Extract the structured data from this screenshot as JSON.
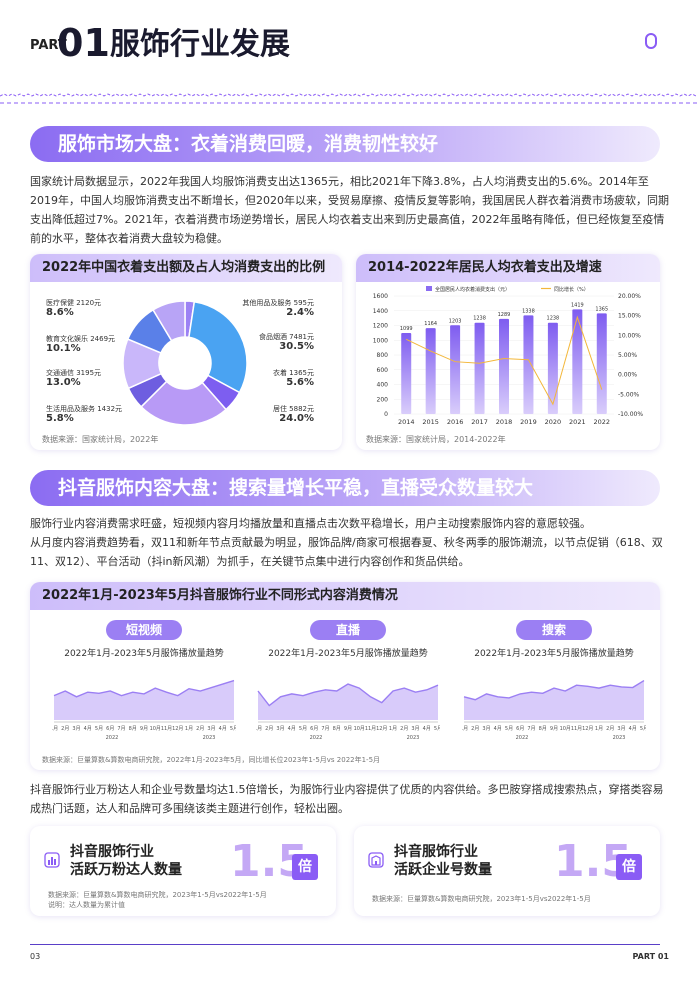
{
  "header": {
    "part": "PART",
    "num": "01",
    "title": "服饰行业发展"
  },
  "s1": {
    "banner": "服饰市场大盘：衣着消费回暖，消费韧性较好",
    "para": "国家统计局数据显示，2022年我国人均服饰消费支出达1365元，相比2021年下降3.8%，占人均消费支出的5.6%。2014年至2019年，中国人均服饰消费支出不断增长，但2020年以来，受贸易摩擦、疫情反复等影响，我国居民人群衣着消费市场疲软，同期支出降低超过7%。2021年，衣着消费市场逆势增长，居民人均衣着支出来到历史最高值，2022年虽略有降低，但已经恢复至疫情前的水平，整体衣着消费大盘较为稳健。"
  },
  "pie_card": {
    "title": "2022年中国衣着支出额及占人均消费支出的比例",
    "source": "数据来源：国家统计局，2022年",
    "items": [
      {
        "name": "医疗保健 2120元",
        "pct": "8.6%",
        "v": 8.6,
        "color": "#b8a4f6"
      },
      {
        "name": "教育文化娱乐 2469元",
        "pct": "10.1%",
        "v": 10.1,
        "color": "#5a80e8"
      },
      {
        "name": "交通通信 3195元",
        "pct": "13.0%",
        "v": 13.0,
        "color": "#c9b7fa"
      },
      {
        "name": "生活用品及服务 1432元",
        "pct": "5.8%",
        "v": 5.8,
        "color": "#6e5ee0"
      },
      {
        "name": "居住 5882元",
        "pct": "24.0%",
        "v": 24.0,
        "color": "#b89af6"
      },
      {
        "name": "衣着 1365元",
        "pct": "5.6%",
        "v": 5.6,
        "color": "#7d5ef0"
      },
      {
        "name": "食品烟酒 7481元",
        "pct": "30.5%",
        "v": 30.5,
        "color": "#4aa3f2"
      },
      {
        "name": "其他用品及服务 595元",
        "pct": "2.4%",
        "v": 2.4,
        "color": "#9c82f4"
      }
    ]
  },
  "chart_data": {
    "type": "bar",
    "title": "2014-2022年居民人均衣着支出及增速",
    "categories": [
      "2014",
      "2015",
      "2016",
      "2017",
      "2018",
      "2019",
      "2020",
      "2021",
      "2022"
    ],
    "series": [
      {
        "name": "全国居民人均衣着消费支出（元）",
        "values": [
          1099,
          1164,
          1203,
          1238,
          1289,
          1338,
          1238,
          1419,
          1365
        ]
      },
      {
        "name": "同比增长（%）",
        "values": [
          9.0,
          6.0,
          3.3,
          2.9,
          4.1,
          3.8,
          -7.5,
          14.6,
          -3.8
        ]
      }
    ],
    "ylim": [
      0,
      1600
    ],
    "y2lim": [
      -10,
      20
    ],
    "yticks": [
      "1600",
      "1400",
      "1200",
      "1000",
      "800",
      "600",
      "400",
      "200",
      "0"
    ],
    "y2ticks": [
      "20.00%",
      "15.00%",
      "10.00%",
      "5.00%",
      "0.00%",
      "-5.00%",
      "-10.00%"
    ],
    "source": "数据来源：国家统计局，2014-2022年"
  },
  "s2": {
    "banner": "抖音服饰内容大盘：搜索量增长平稳，直播受众数量较大",
    "para1": "服饰行业内容消费需求旺盛，短视频内容月均播放量和直播点击次数平稳增长，用户主动搜索服饰内容的意愿较强。",
    "para2": "从月度内容消费趋势看，双11和新年节点贡献最为明显，服饰品牌/商家可根据春夏、秋冬两季的服饰潮流，以节点促销（618、双11、双12）、平台活动（抖in新风潮）为抓手，在关键节点集中进行内容创作和货品供给。"
  },
  "trend_card": {
    "title": "2022年1月-2023年5月抖音服饰行业不同形式内容消费情况",
    "panels": [
      {
        "pill": "短视频",
        "sub": "2022年1月-2023年5月服饰播放量趋势",
        "vals": [
          0.42,
          0.5,
          0.4,
          0.48,
          0.46,
          0.5,
          0.42,
          0.48,
          0.45,
          0.55,
          0.48,
          0.42,
          0.54,
          0.5,
          0.56,
          0.62,
          0.68
        ]
      },
      {
        "pill": "直播",
        "sub": "2022年1月-2023年5月服饰播放量趋势",
        "vals": [
          0.5,
          0.25,
          0.4,
          0.45,
          0.42,
          0.48,
          0.52,
          0.5,
          0.62,
          0.55,
          0.4,
          0.3,
          0.5,
          0.55,
          0.48,
          0.52,
          0.6
        ]
      },
      {
        "pill": "搜索",
        "sub": "2022年1月-2023年5月服饰播放量趋势",
        "vals": [
          0.4,
          0.35,
          0.45,
          0.4,
          0.38,
          0.45,
          0.48,
          0.46,
          0.55,
          0.5,
          0.6,
          0.58,
          0.55,
          0.6,
          0.57,
          0.56,
          0.68
        ]
      }
    ],
    "months": [
      "1月",
      "2月",
      "3月",
      "4月",
      "5月",
      "6月",
      "7月",
      "8月",
      "9月",
      "10月",
      "11月",
      "12月",
      "1月",
      "2月",
      "3月",
      "4月",
      "5月"
    ],
    "year1": "2022",
    "year2": "2023",
    "source": "数据来源：巨量算数&算数电商研究院，2022年1月-2023年5月，同比增长位2023年1-5月vs 2022年1-5月"
  },
  "s3": {
    "para": "抖音服饰行业万粉达人和企业号数量均达1.5倍增长，为服饰行业内容提供了优质的内容供给。多巴胺穿搭成搜索热点，穿搭类容易成热门话题，达人和品牌可多围绕该类主题进行创作，轻松出圈。",
    "card1": {
      "title1": "抖音服饰行业",
      "title2": "活跃万粉达人数量",
      "num": "1.5",
      "unit": "倍",
      "source": "数据来源：巨量算数&算数电商研究院，2023年1-5月vs2022年1-5月",
      "note": "说明：达人数量为累计值"
    },
    "card2": {
      "title1": "抖音服饰行业",
      "title2": "活跃企业号数量",
      "num": "1.5",
      "unit": "倍",
      "source": "数据来源：巨量算数&算数电商研究院，2023年1-5月vs2022年1-5月"
    }
  },
  "footer": {
    "page": "03",
    "part": "PART 01"
  }
}
